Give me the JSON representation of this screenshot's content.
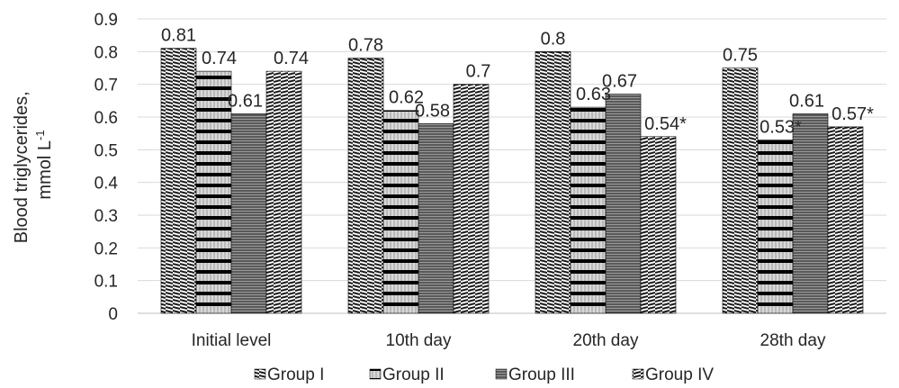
{
  "chart_data": {
    "type": "bar",
    "title": "",
    "xlabel": "",
    "ylabel_line1": "Blood triglycerides,",
    "ylabel_line2": "mmol L",
    "ylabel_sup": "-1",
    "ylim": [
      0,
      0.9
    ],
    "yticks": [
      "0",
      "0.1",
      "0.2",
      "0.3",
      "0.4",
      "0.5",
      "0.6",
      "0.7",
      "0.8",
      "0.9"
    ],
    "grid": true,
    "legend_position": "bottom",
    "categories": [
      "Initial level",
      "10th day",
      "20th day",
      "28th day"
    ],
    "series": [
      {
        "name": "Group I",
        "values": [
          0.81,
          0.78,
          0.8,
          0.75
        ],
        "labels": [
          "0.81",
          "0.78",
          "0.8",
          "0.75"
        ]
      },
      {
        "name": "Group II",
        "values": [
          0.74,
          0.62,
          0.63,
          0.53
        ],
        "labels": [
          "0.74",
          "0.62",
          "0.63",
          "0.53*"
        ]
      },
      {
        "name": "Group III",
        "values": [
          0.61,
          0.58,
          0.67,
          0.61
        ],
        "labels": [
          "0.61",
          "0.58",
          "0.67",
          "0.61"
        ]
      },
      {
        "name": "Group IV",
        "values": [
          0.74,
          0.7,
          0.54,
          0.57
        ],
        "labels": [
          "0.74",
          "0.7",
          "0.54*",
          "0.57*"
        ]
      }
    ]
  }
}
